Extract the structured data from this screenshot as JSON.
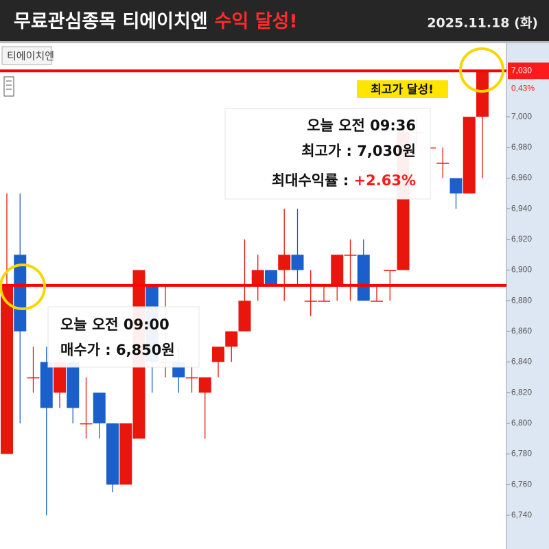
{
  "header": {
    "title": "무료관심종목 티에이치엔",
    "title_highlight": "수익 달성!",
    "date": "2025.11.18 (화)"
  },
  "chart_data": {
    "type": "candlestick",
    "symbol": "티에이치엔",
    "up_color": "#e8160c",
    "down_color": "#1b5fcc",
    "open": [
      6780,
      6910,
      6830,
      6840,
      6820,
      6840,
      6800,
      6820,
      6800,
      6760,
      6790,
      6890,
      6840,
      6840,
      6830,
      6820,
      6840,
      6850,
      6860,
      6890,
      6900,
      6900,
      6910,
      6880,
      6880,
      6890,
      6910,
      6910,
      6880,
      6900,
      6900,
      6990,
      6980,
      6970,
      6960,
      6950,
      7000
    ],
    "high": [
      6950,
      6950,
      6850,
      6850,
      6850,
      6850,
      6830,
      6820,
      6800,
      6800,
      6900,
      6890,
      6890,
      6850,
      6840,
      6830,
      6850,
      6860,
      6920,
      6910,
      6900,
      6940,
      6940,
      6900,
      6890,
      6910,
      6920,
      6920,
      6890,
      6900,
      7000,
      7000,
      6980,
      6980,
      6960,
      7000,
      7030
    ],
    "low": [
      6780,
      6800,
      6820,
      6740,
      6810,
      6800,
      6790,
      6790,
      6755,
      6760,
      6790,
      6820,
      6830,
      6820,
      6820,
      6790,
      6830,
      6840,
      6860,
      6880,
      6890,
      6880,
      6890,
      6870,
      6880,
      6880,
      6880,
      6880,
      6880,
      6880,
      6900,
      6980,
      6980,
      6960,
      6940,
      6950,
      6960
    ],
    "close": [
      6890,
      6860,
      6830,
      6810,
      6840,
      6810,
      6800,
      6800,
      6760,
      6800,
      6900,
      6840,
      6840,
      6830,
      6830,
      6830,
      6850,
      6860,
      6880,
      6900,
      6890,
      6910,
      6900,
      6880,
      6880,
      6910,
      6910,
      6880,
      6880,
      6900,
      6990,
      6990,
      6980,
      6970,
      6950,
      7000,
      7030
    ],
    "ylim": [
      6718,
      7048
    ],
    "yticks": [
      {
        "value": 6740,
        "label": "6,740"
      },
      {
        "value": 6760,
        "label": "6,760"
      },
      {
        "value": 6780,
        "label": "6,780"
      },
      {
        "value": 6800,
        "label": "6,800"
      },
      {
        "value": 6820,
        "label": "6,820"
      },
      {
        "value": 6840,
        "label": "6,840"
      },
      {
        "value": 6860,
        "label": "6,860"
      },
      {
        "value": 6880,
        "label": "6,880"
      },
      {
        "value": 6900,
        "label": "6,900"
      },
      {
        "value": 6920,
        "label": "6,920"
      },
      {
        "value": 6940,
        "label": "6,940"
      },
      {
        "value": 6960,
        "label": "6,960"
      },
      {
        "value": 6980,
        "label": "6,980"
      },
      {
        "value": 7000,
        "label": "7,000"
      }
    ],
    "hlines": [
      {
        "value": 6890,
        "color": "#ff0000"
      },
      {
        "value": 7030,
        "color": "#ff0000"
      }
    ],
    "price_tag": {
      "value": 7030,
      "label": "7,030",
      "change": "0,43%"
    },
    "annotations": {
      "buy_time": "오늘 오전 09:00",
      "buy_price": "매수가 : 6,850원",
      "peak_time": "오늘 오전 09:36",
      "peak_price": "최고가 : 7,030원",
      "max_return_label": "최대수익률 : ",
      "max_return": "+2.63%",
      "peak_badge": "최고가 달성!"
    }
  }
}
